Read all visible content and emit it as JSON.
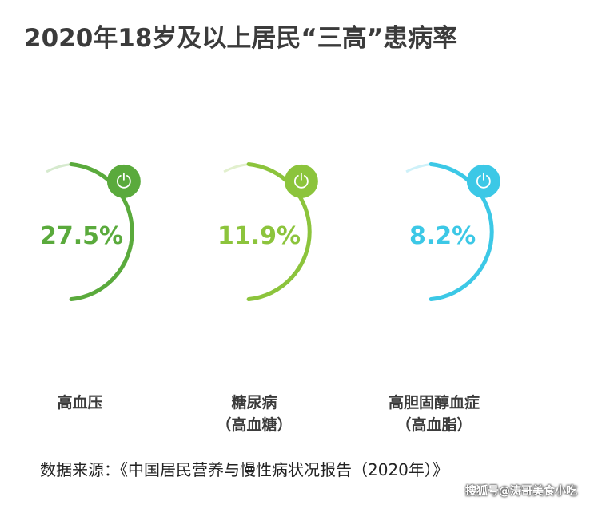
{
  "chart_data": {
    "type": "gauge",
    "title": "2020年18岁及以上居民“三高”患病率",
    "categories": [
      "高血压",
      "糖尿病",
      "高胆固醇血症"
    ],
    "items": [
      {
        "name": "高血压",
        "subname": "",
        "value": 27.5,
        "value_label": "27.5%",
        "color": "#5aaa3c"
      },
      {
        "name": "糖尿病",
        "subname": "（高血糖）",
        "value": 11.9,
        "value_label": "11.9%",
        "color": "#8cc43c"
      },
      {
        "name": "高胆固醇血症",
        "subname": "（高血脂）",
        "value": 8.2,
        "value_label": "8.2%",
        "color": "#3cc8e6"
      }
    ]
  },
  "source": "数据来源：《中国居民营养与慢性病状况报告（2020年）》",
  "watermark": "搜狐号@涛哥美食小吃"
}
